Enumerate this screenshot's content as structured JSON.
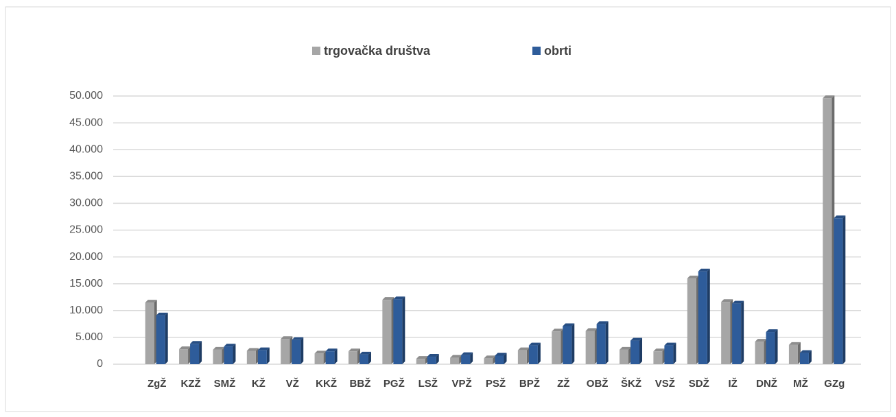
{
  "chart_data": {
    "type": "bar",
    "categories": [
      "ZgŽ",
      "KZŽ",
      "SMŽ",
      "KŽ",
      "VŽ",
      "KKŽ",
      "BBŽ",
      "PGŽ",
      "LSŽ",
      "VPŽ",
      "PSŽ",
      "BPŽ",
      "ZŽ",
      "OBŽ",
      "ŠKŽ",
      "VSŽ",
      "SDŽ",
      "IŽ",
      "DNŽ",
      "MŽ",
      "GZg"
    ],
    "series": [
      {
        "name": "trgovačka društva",
        "color": "#a6a6a6",
        "values": [
          11500,
          2800,
          2700,
          2500,
          4700,
          2000,
          2400,
          12000,
          1000,
          1200,
          1100,
          2600,
          6100,
          6200,
          2700,
          2400,
          16000,
          11600,
          4200,
          3600,
          49600
        ]
      },
      {
        "name": "obrti",
        "color": "#2e5c9a",
        "values": [
          9100,
          3800,
          3300,
          2600,
          4500,
          2400,
          1800,
          12100,
          1400,
          1700,
          1600,
          3500,
          7100,
          7500,
          4400,
          3500,
          17300,
          11300,
          6000,
          2100,
          27200
        ]
      }
    ],
    "ylim": [
      0,
      50000
    ],
    "yticks": [
      0,
      {
        "value": 5000,
        "label": "5.000"
      },
      {
        "value": 10000,
        "label": "10.000"
      },
      {
        "value": 15000,
        "label": "15.000"
      },
      {
        "value": 20000,
        "label": "20.000"
      },
      {
        "value": 25000,
        "label": "25.000"
      },
      {
        "value": 30000,
        "label": "30.000"
      },
      {
        "value": 35000,
        "label": "35.000"
      },
      {
        "value": 40000,
        "label": "40.000"
      },
      {
        "value": 45000,
        "label": "45.000"
      },
      {
        "value": 50000,
        "label": "50.000"
      }
    ],
    "grid": true,
    "legend": "top"
  }
}
